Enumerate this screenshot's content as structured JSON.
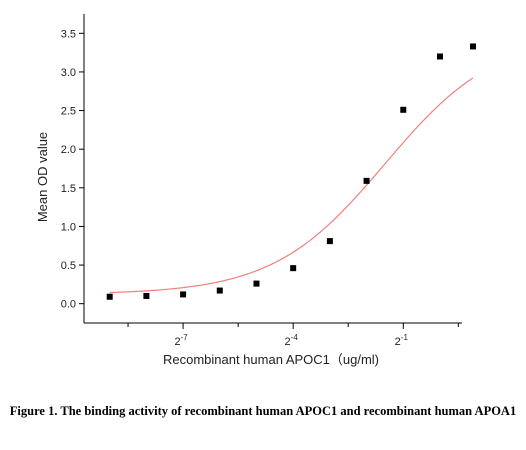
{
  "caption": "Figure 1. The binding activity of recombinant human APOC1 and recombinant human APOA1",
  "chart_data": {
    "type": "scatter",
    "title": "",
    "xlabel": "Recombinant human  APOC1（ug/ml)",
    "ylabel": "Mean OD value",
    "x_scale": "log2",
    "xlim_log2": [
      -9.7,
      0.6
    ],
    "ylim": [
      -0.25,
      3.75
    ],
    "yticks": [
      0.0,
      0.5,
      1.0,
      1.5,
      2.0,
      2.5,
      3.0,
      3.5
    ],
    "ytick_labels": [
      "0.0",
      "0.5",
      "1.0",
      "1.5",
      "2.0",
      "2.5",
      "3.0",
      "3.5"
    ],
    "xticks_major_log2": [
      -7,
      -4,
      -1
    ],
    "xtick_labels": [
      {
        "base": "2",
        "exp": "-7"
      },
      {
        "base": "2",
        "exp": "-4"
      },
      {
        "base": "2",
        "exp": "-1"
      }
    ],
    "xticks_minor_log2": [
      -8.5,
      -5.5,
      -2.5,
      0.5
    ],
    "series": [
      {
        "name": "",
        "marker": "square",
        "color": "#000000",
        "x_log2": [
          -9,
          -8,
          -7,
          -6,
          -5,
          -4,
          -3,
          -2,
          -1,
          0
        ],
        "x": [
          0.001953,
          0.003906,
          0.007813,
          0.015625,
          0.03125,
          0.0625,
          0.125,
          0.25,
          0.5,
          1
        ],
        "y": [
          0.09,
          0.1,
          0.12,
          0.17,
          0.26,
          0.46,
          0.81,
          1.59,
          2.51,
          3.2
        ]
      }
    ],
    "extra_point": {
      "x_log2": 0.9,
      "y": 3.33
    },
    "fit_curve": {
      "type": "4PL",
      "color": "#f08080",
      "bottom": 0.12,
      "top": 3.5,
      "log2_ec50": -1.5,
      "hill": 0.95
    },
    "grid": false,
    "legend": "none"
  }
}
